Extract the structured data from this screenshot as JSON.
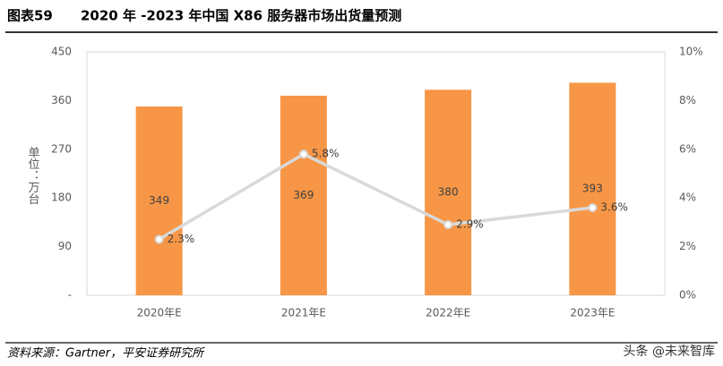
{
  "header": {
    "label": "图表59",
    "title": "2020 年 -2023 年中国 X86 服务器市场出货量预测"
  },
  "chart_data": {
    "type": "bar-line",
    "y_label": "单位：万台",
    "categories": [
      "2020年E",
      "2021年E",
      "2022年E",
      "2023年E"
    ],
    "series": [
      {
        "type": "bar",
        "color": "#f79646",
        "values": [
          349,
          369,
          380,
          393
        ]
      },
      {
        "type": "line",
        "axis": "y2",
        "color": "#d9d9d9",
        "values": [
          2.3,
          5.8,
          2.9,
          3.6
        ],
        "value_labels": [
          "2.3%",
          "5.8%",
          "2.9%",
          "3.6%"
        ]
      }
    ],
    "ylim": [
      0,
      450
    ],
    "yticks": [
      {
        "value": 0,
        "label": "-"
      },
      90,
      180,
      270,
      360,
      450
    ],
    "y2lim": [
      0,
      10
    ],
    "y2ticks": [
      {
        "value": 0,
        "label": "0%"
      },
      {
        "value": 2,
        "label": "2%"
      },
      {
        "value": 4,
        "label": "4%"
      },
      {
        "value": 6,
        "label": "6%"
      },
      {
        "value": 8,
        "label": "8%"
      },
      {
        "value": 10,
        "label": "10%"
      }
    ],
    "grid": false
  },
  "footer": {
    "source": "资料来源：Gartner，平安证券研究所",
    "watermark": "头条 @未来智库"
  }
}
